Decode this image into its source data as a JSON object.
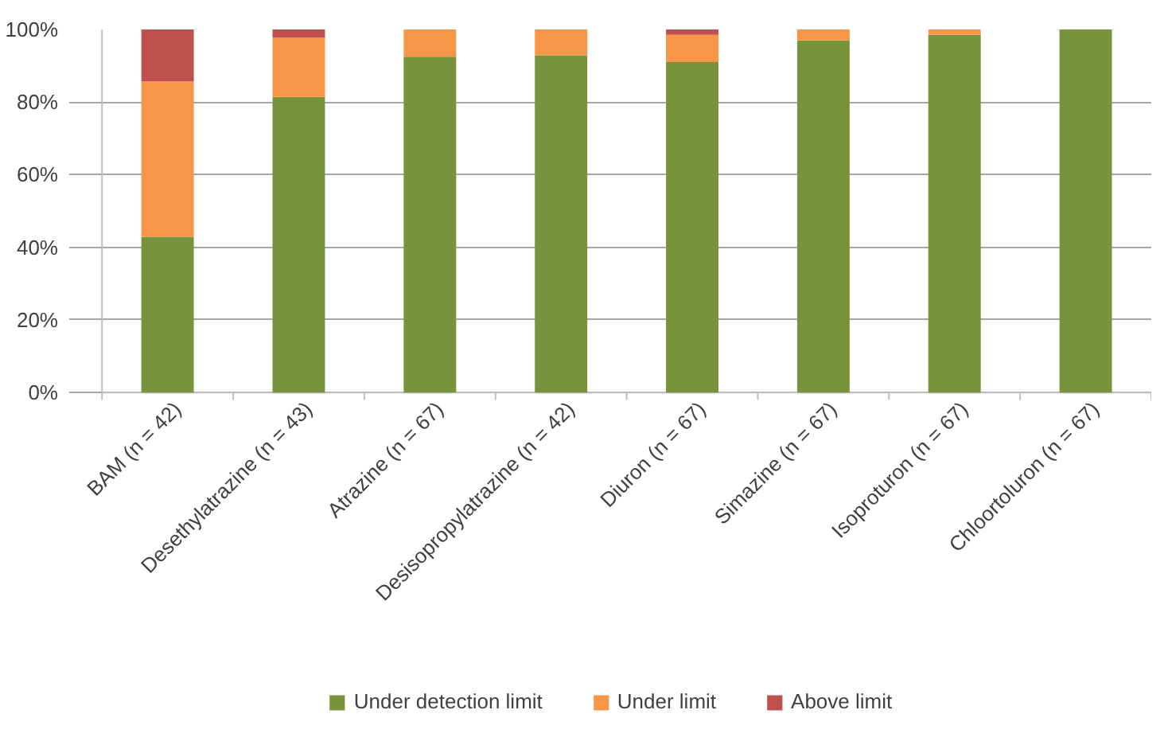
{
  "chart_data": {
    "type": "bar",
    "stacked": true,
    "categories": [
      "BAM (n = 42)",
      "Desethylatrazine (n = 43)",
      "Atrazine (n = 67)",
      "Desisopropylatrazine (n = 42)",
      "Diuron (n = 67)",
      "Simazine (n = 67)",
      "Isoproturon (n = 67)",
      "Chloortoluron (n = 67)"
    ],
    "series": [
      {
        "name": "Under detection limit",
        "color": "#77933c",
        "values": [
          42.9,
          81.4,
          92.5,
          92.9,
          91.0,
          97.0,
          98.5,
          100
        ]
      },
      {
        "name": "Under limit",
        "color": "#f79646",
        "values": [
          42.8,
          16.3,
          7.5,
          7.1,
          7.5,
          3.0,
          1.5,
          0
        ]
      },
      {
        "name": "Above limit",
        "color": "#c0504d",
        "values": [
          14.3,
          2.3,
          0,
          0,
          1.5,
          0,
          0,
          0
        ]
      }
    ],
    "ylim": [
      0,
      100
    ],
    "yticks": [
      {
        "value": 0,
        "label": "0%"
      },
      {
        "value": 20,
        "label": "20%"
      },
      {
        "value": 40,
        "label": "40%"
      },
      {
        "value": 60,
        "label": "60%"
      },
      {
        "value": 80,
        "label": "80%"
      },
      {
        "value": 100,
        "label": "100%"
      }
    ],
    "grid": "y",
    "legend": "bottom"
  }
}
